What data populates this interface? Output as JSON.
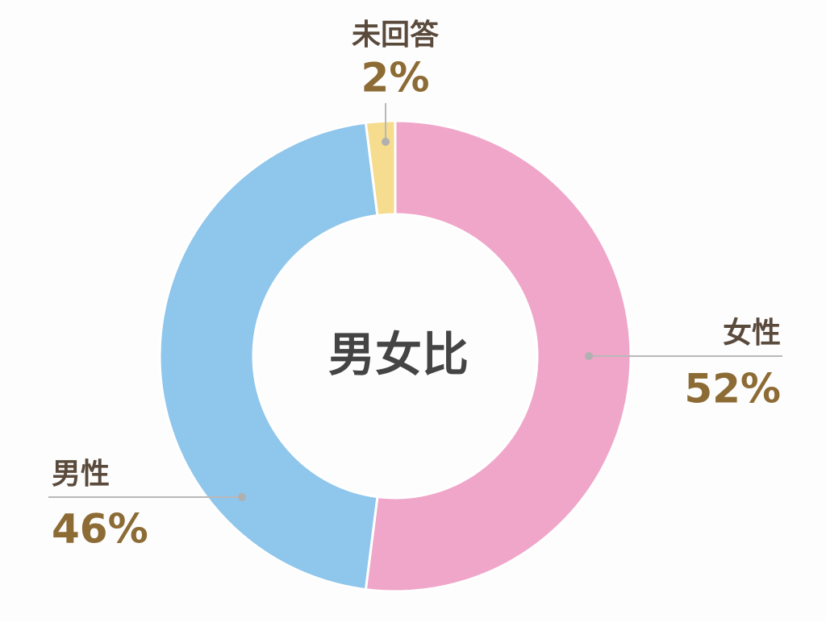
{
  "chart_data": {
    "type": "pie",
    "donut": true,
    "title": "男女比",
    "categories": [
      "女性",
      "男性",
      "未回答"
    ],
    "values": [
      52,
      46,
      2
    ],
    "value_labels": [
      "52%",
      "46%",
      "2%"
    ],
    "colors": [
      "#f0a6c9",
      "#8fc6ec",
      "#f5dc8e"
    ]
  }
}
